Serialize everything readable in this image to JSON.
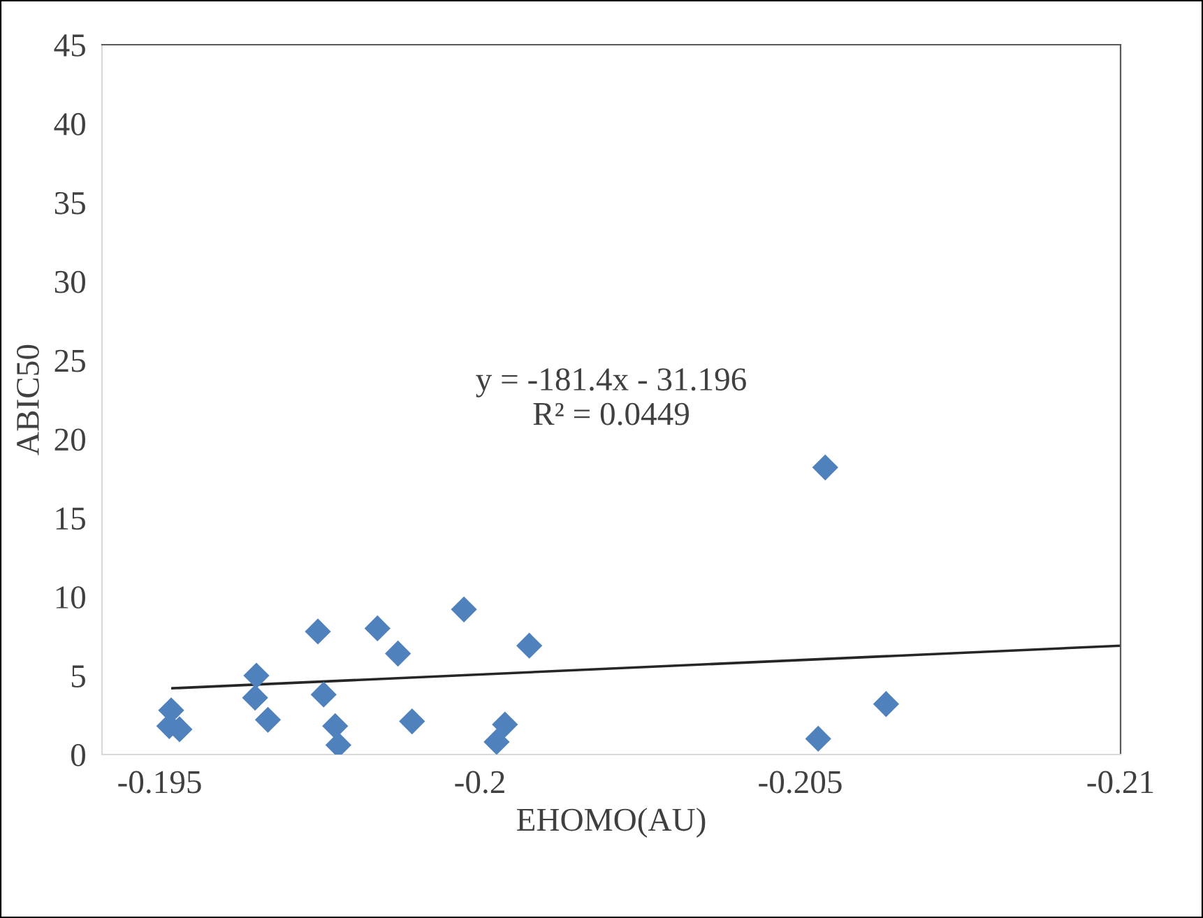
{
  "chart_data": {
    "type": "scatter",
    "xlabel": "EHOMO(AU)",
    "ylabel": "ABIC50",
    "marker": "diamond",
    "grid": false,
    "legend": false,
    "xlim": [
      -0.1941,
      -0.21
    ],
    "xticks": [
      -0.195,
      -0.2,
      -0.205,
      -0.21
    ],
    "ylim": [
      0,
      45
    ],
    "yticks": [
      0,
      5,
      10,
      15,
      20,
      25,
      30,
      35,
      40,
      45
    ],
    "annotations": [
      "y = -181.4x - 31.196\nR² = 0.0449"
    ],
    "series": [
      {
        "color": "#4f81bd",
        "x": [
          -0.19518,
          -0.19515,
          -0.19531,
          -0.19651,
          -0.19649,
          -0.19669,
          -0.19747,
          -0.19756,
          -0.19774,
          -0.19779,
          -0.1984,
          -0.19872,
          -0.19894,
          -0.19975,
          -0.20077,
          -0.20039,
          -0.20026,
          -0.20539,
          -0.20634,
          -0.20528
        ],
        "values": [
          2.8,
          1.8,
          1.6,
          5.0,
          3.6,
          2.2,
          7.8,
          3.8,
          1.8,
          0.6,
          8.0,
          6.4,
          2.1,
          9.2,
          6.9,
          1.9,
          0.8,
          18.2,
          3.2,
          1.0
        ]
      },
      {
        "type": "line",
        "color": "#262626",
        "marker": "none",
        "x": [
          -0.1952,
          -0.21
        ],
        "values": [
          4.2,
          6.9
        ]
      }
    ]
  }
}
